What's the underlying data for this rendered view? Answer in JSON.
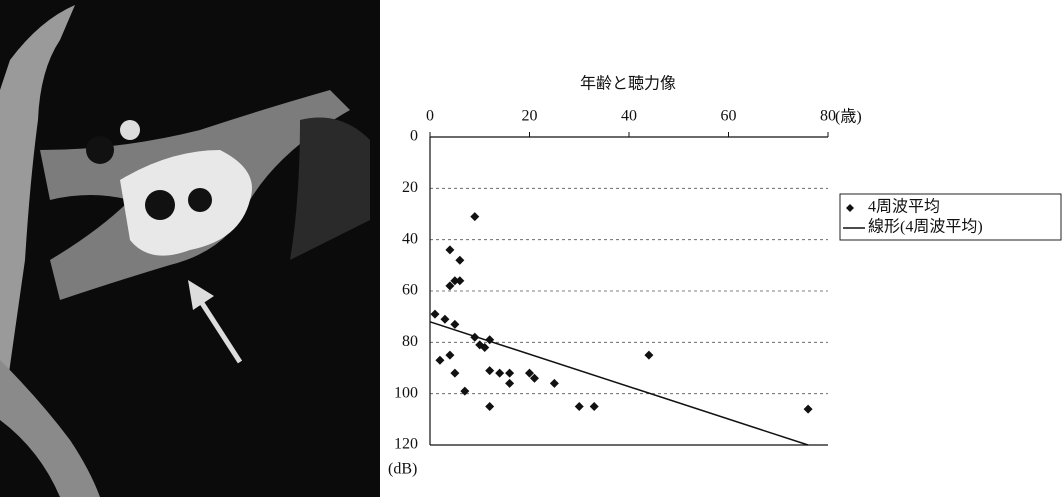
{
  "chart_data": {
    "type": "scatter",
    "title": "年齢と聴力像",
    "x_label": "(歳)",
    "y_label": "(dB)",
    "xlim": [
      0,
      80
    ],
    "xticks": [
      0,
      20,
      40,
      60,
      80
    ],
    "ylim": [
      0,
      120
    ],
    "yticks": [
      0,
      20,
      40,
      60,
      80,
      100,
      120
    ],
    "y_inverted": true,
    "x_axis_position": "top",
    "grid": true,
    "legend": "right",
    "series": [
      {
        "name": "4周波平均",
        "color": "#111111",
        "marker": "diamond",
        "x": [
          1,
          3,
          2,
          4,
          4,
          4,
          5,
          6,
          6,
          5,
          5,
          7,
          9,
          9,
          10,
          11,
          12,
          12,
          12,
          14,
          16,
          16,
          20,
          21,
          25,
          30,
          33,
          44,
          76
        ],
        "values": [
          69,
          71,
          87,
          85,
          44,
          58,
          56,
          48,
          56,
          73,
          92,
          99,
          78,
          31,
          81,
          82,
          91,
          79,
          105,
          92,
          92,
          96,
          92,
          94,
          96,
          105,
          105,
          85,
          106
        ]
      },
      {
        "name": "線形(4周波平均)",
        "color": "#111111",
        "type": "line",
        "x": [
          0,
          76
        ],
        "values": [
          72,
          120
        ]
      }
    ]
  }
}
